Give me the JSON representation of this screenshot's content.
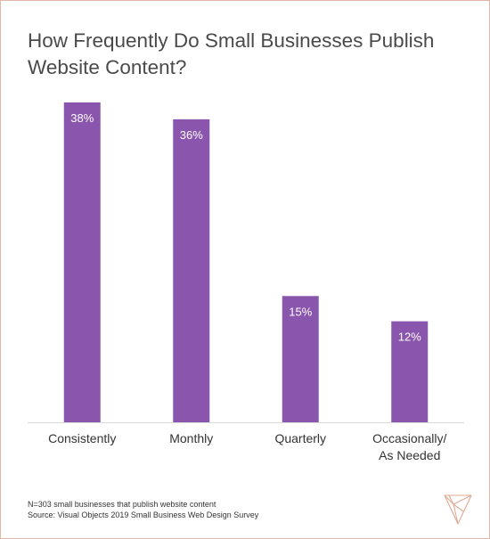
{
  "chart_data": {
    "type": "bar",
    "title": "How Frequently Do Small Businesses Publish Website Content?",
    "categories": [
      "Consistently",
      "Monthly",
      "Quarterly",
      "Occasionally/ As Needed"
    ],
    "values": [
      38,
      36,
      15,
      12
    ],
    "value_labels": [
      "38%",
      "36%",
      "15%",
      "12%"
    ],
    "unit": "%",
    "ylim": [
      0,
      38
    ],
    "grid": false,
    "legend": "none",
    "xlabel": "",
    "ylabel": ""
  },
  "footer": {
    "note": "N=303 small businesses that publish website content",
    "source": "Source: Visual Objects 2019 Small Business Web Design Survey"
  },
  "colors": {
    "bar": "#8a55ad",
    "bar_label": "#ffffff",
    "title": "#4a4a4a",
    "axis_label": "#333333",
    "frame": "#e3b8a8",
    "logo": "#e0a894"
  },
  "logo": {
    "icon": "visual-objects-logo-icon"
  }
}
